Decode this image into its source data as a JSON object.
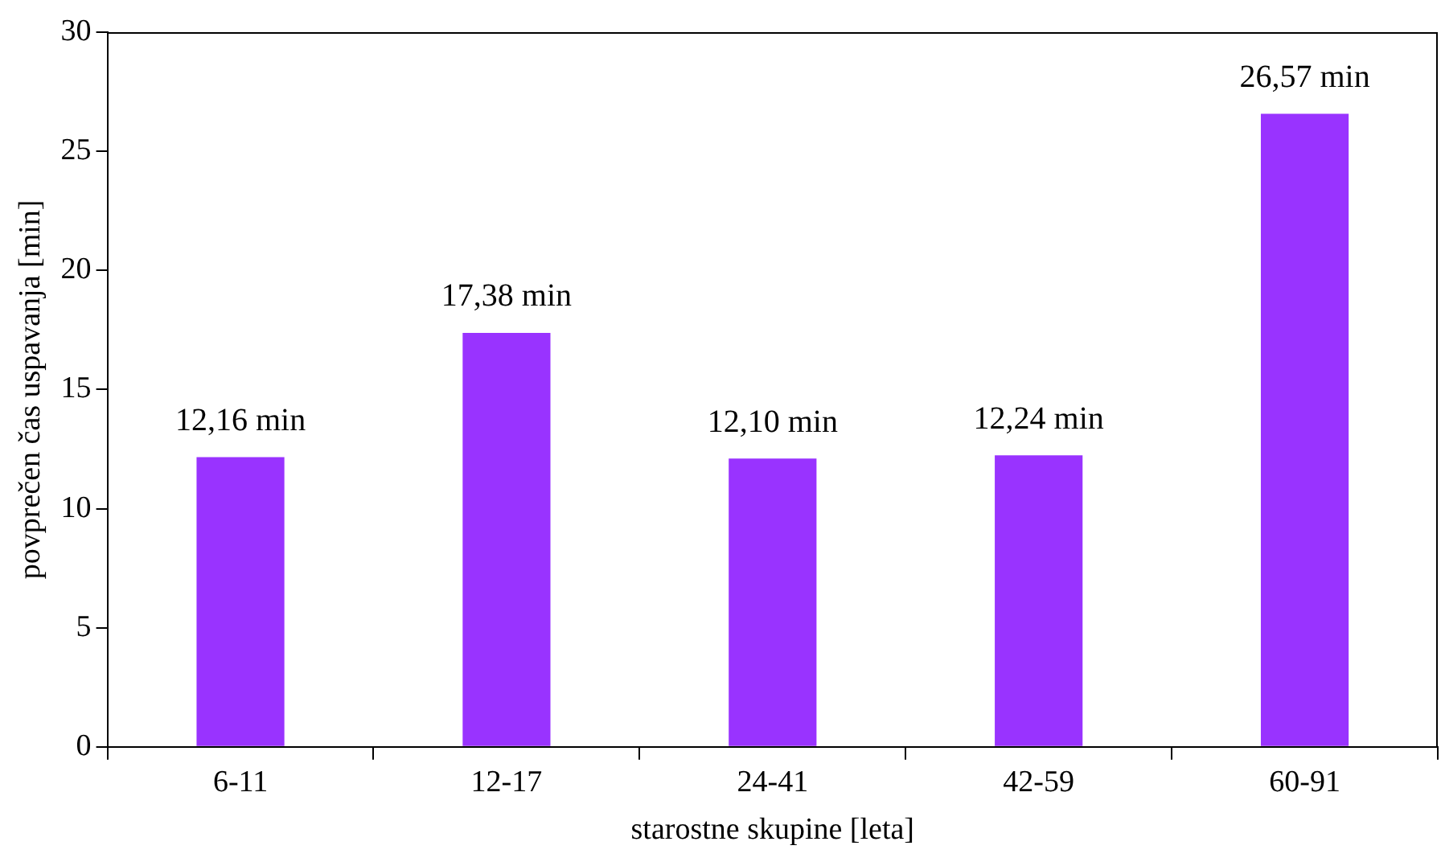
{
  "chart_data": {
    "type": "bar",
    "xlabel": "starostne skupine [leta]",
    "ylabel": "povprečen čas uspavanja [min]",
    "categories": [
      "6-11",
      "12-17",
      "24-41",
      "42-59",
      "60-91"
    ],
    "values": [
      12.16,
      17.38,
      12.1,
      12.24,
      26.57
    ],
    "value_labels": [
      "12,16 min",
      "17,38 min",
      "12,10 min",
      "12,24 min",
      "26,57 min"
    ],
    "color": "#9933ff",
    "ylim": [
      0,
      30
    ],
    "yticks": [
      0,
      5,
      10,
      15,
      20,
      25,
      30
    ],
    "grid": false,
    "legend": false
  }
}
